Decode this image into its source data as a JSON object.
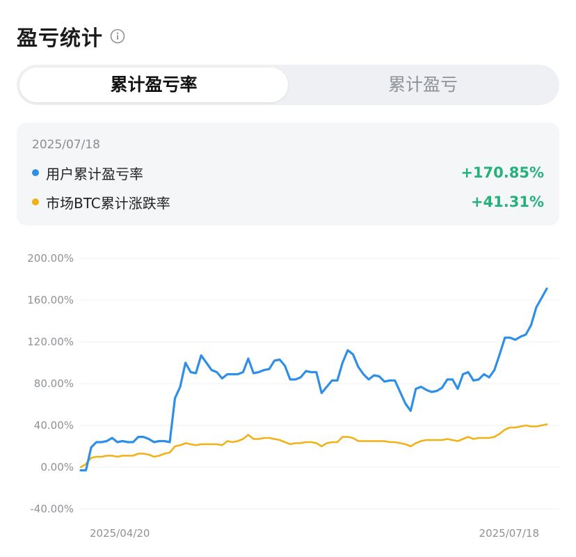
{
  "header": {
    "title": "盈亏统计",
    "info_icon": "info-icon"
  },
  "tabs": [
    {
      "label": "累计盈亏率",
      "active": true
    },
    {
      "label": "累计盈亏",
      "active": false
    }
  ],
  "summary": {
    "date": "2025/07/18",
    "rows": [
      {
        "label": "用户累计盈亏率",
        "value": "+170.85%",
        "color": "#2f8fe6"
      },
      {
        "label": "市场BTC累计涨跌率",
        "value": "+41.31%",
        "color": "#f2b116"
      }
    ],
    "positive_color": "#25b17b"
  },
  "chart_data": {
    "type": "line",
    "title": "",
    "xlabel": "",
    "ylabel": "",
    "ylim": [
      -40,
      200
    ],
    "yticks": [
      200,
      160,
      120,
      80,
      40,
      0,
      -40
    ],
    "ytick_labels": [
      "200.00%",
      "160.00%",
      "120.00%",
      "80.00%",
      "40.00%",
      "0.00%",
      "-40.00%"
    ],
    "x_start": "2025/04/12",
    "x_end": "2025/07/18",
    "xtick_labels": [
      "2025/04/20",
      "2025/07/18"
    ],
    "grid": true,
    "series": [
      {
        "name": "用户累计盈亏率",
        "color": "#2f8fe6",
        "values": [
          -3,
          -3,
          19,
          24,
          24,
          25,
          28,
          24,
          25,
          24,
          24,
          29,
          29,
          27,
          24,
          25,
          25,
          24,
          66,
          77,
          100,
          91,
          90,
          107,
          100,
          93,
          91,
          85,
          89,
          89,
          89,
          91,
          104,
          90,
          91,
          93,
          94,
          102,
          103,
          97,
          84,
          84,
          86,
          92,
          91,
          91,
          71,
          77,
          83,
          83,
          100,
          112,
          108,
          96,
          89,
          84,
          88,
          87,
          82,
          83,
          83,
          72,
          61,
          54,
          75,
          77,
          74,
          72,
          73,
          76,
          84,
          84,
          75,
          89,
          91,
          83,
          84,
          89,
          86,
          93,
          108,
          124,
          124,
          122,
          125,
          127,
          136,
          153,
          162,
          171
        ]
      },
      {
        "name": "市场BTC累计涨跌率",
        "color": "#f2b116",
        "values": [
          0,
          3,
          9,
          10,
          10,
          11,
          11,
          10,
          11,
          11,
          11,
          13,
          13,
          12,
          10,
          11,
          13,
          14,
          20,
          21,
          23,
          22,
          21,
          22,
          22,
          22,
          22,
          21,
          25,
          24,
          25,
          27,
          31,
          27,
          27,
          28,
          28,
          27,
          26,
          24,
          22,
          23,
          23,
          24,
          24,
          23,
          20,
          23,
          24,
          24,
          29,
          29,
          28,
          25,
          25,
          25,
          25,
          25,
          25,
          24,
          24,
          23,
          22,
          20,
          23,
          25,
          26,
          26,
          26,
          26,
          27,
          26,
          25,
          27,
          29,
          27,
          28,
          28,
          28,
          29,
          32,
          36,
          38,
          38,
          39,
          40,
          39,
          39,
          40,
          41
        ]
      }
    ]
  }
}
